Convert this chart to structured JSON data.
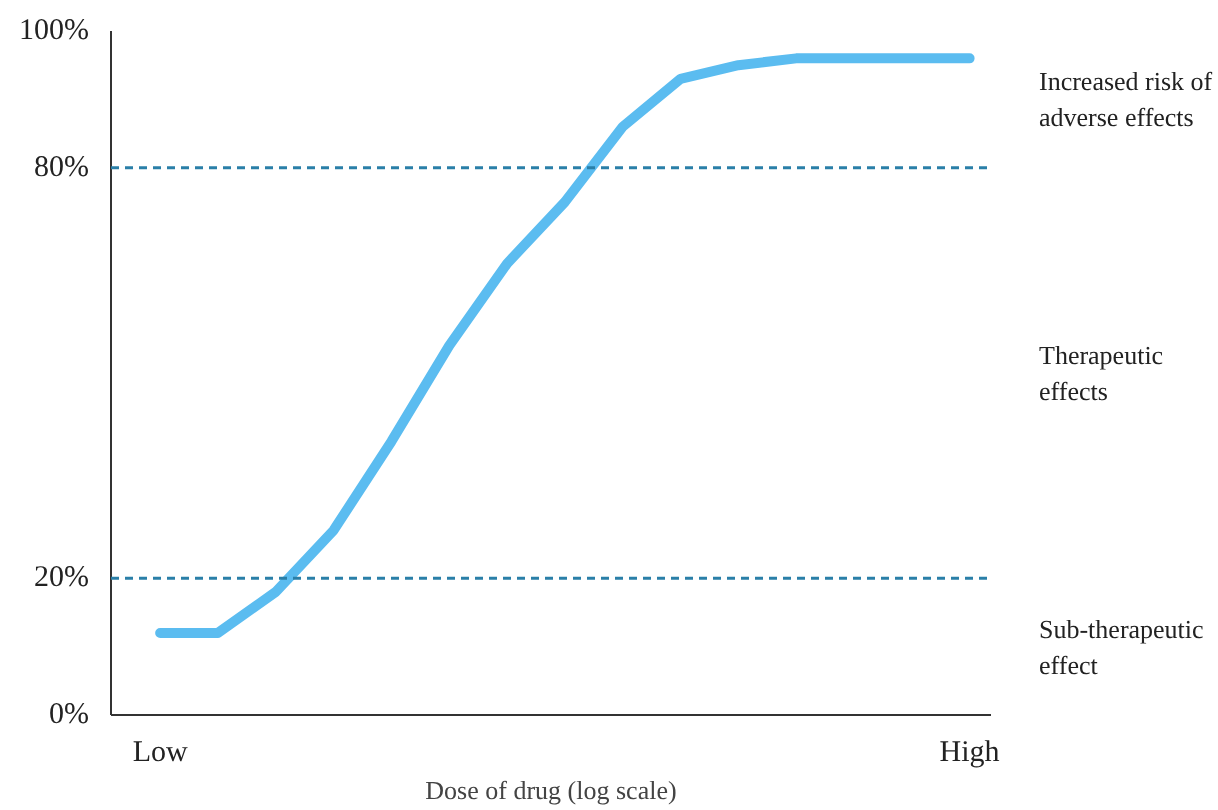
{
  "chart_data": {
    "type": "line",
    "xlabel": "Dose of drug (log scale)",
    "categories": [
      "Low",
      null,
      null,
      null,
      null,
      null,
      null,
      null,
      null,
      null,
      null,
      null,
      null,
      null,
      "High"
    ],
    "series": [
      {
        "color": "#5bbcf0",
        "values": [
          12,
          12,
          18,
          27,
          40,
          54,
          66,
          75,
          86,
          93,
          95,
          96,
          96,
          96,
          96
        ]
      }
    ],
    "ylim": [
      0,
      100
    ],
    "yticks": [
      {
        "value": 0,
        "label": "0%"
      },
      {
        "value": 20,
        "label": "20%"
      },
      {
        "value": 80,
        "label": "80%"
      },
      {
        "value": 100,
        "label": "100%"
      }
    ],
    "ref_lines": [
      {
        "axis": "y",
        "value": 20,
        "color": "#2a7fa8",
        "line_style": "dashed"
      },
      {
        "axis": "y",
        "value": 80,
        "color": "#2a7fa8",
        "line_style": "dashed"
      }
    ],
    "annotations": [
      "Increased risk of adverse effects",
      "Therapeutic effects",
      "Sub-therapeutic effect"
    ],
    "grid": false,
    "marker": "none",
    "line_style": "solid"
  }
}
